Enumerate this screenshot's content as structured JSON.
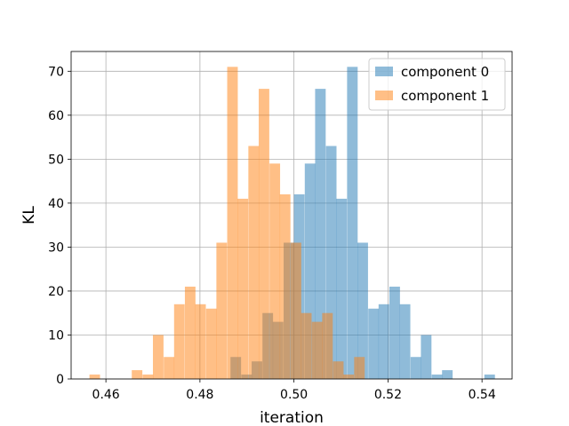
{
  "chart_data": {
    "type": "bar",
    "subtype": "overlapping-histogram",
    "xlabel": "iteration",
    "ylabel": "KL",
    "xlim": [
      0.4526,
      0.5464
    ],
    "ylim": [
      0,
      74.5
    ],
    "xticks": [
      "0.46",
      "0.48",
      "0.50",
      "0.52",
      "0.54"
    ],
    "xtick_values": [
      0.46,
      0.48,
      0.5,
      0.52,
      0.54
    ],
    "yticks": [
      "0",
      "10",
      "20",
      "30",
      "40",
      "50",
      "60",
      "70"
    ],
    "ytick_values": [
      0,
      10,
      20,
      30,
      40,
      50,
      60,
      70
    ],
    "grid": true,
    "legend_position": "top-right",
    "series": [
      {
        "name": "component 0",
        "color": "#1f77b4",
        "opacity": 0.5,
        "bin_width": 0.00225,
        "bins": [
          [
            0.4865,
            5
          ],
          [
            0.4888,
            1
          ],
          [
            0.491,
            4
          ],
          [
            0.4933,
            15
          ],
          [
            0.4955,
            13
          ],
          [
            0.4978,
            31
          ],
          [
            0.5,
            42
          ],
          [
            0.5023,
            49
          ],
          [
            0.5045,
            66
          ],
          [
            0.5068,
            53
          ],
          [
            0.509,
            41
          ],
          [
            0.5113,
            71
          ],
          [
            0.5135,
            31
          ],
          [
            0.5158,
            16
          ],
          [
            0.518,
            17
          ],
          [
            0.5203,
            21
          ],
          [
            0.5225,
            17
          ],
          [
            0.5248,
            5
          ],
          [
            0.527,
            10
          ],
          [
            0.5293,
            1
          ],
          [
            0.5315,
            2
          ],
          [
            0.5338,
            0
          ],
          [
            0.536,
            0
          ],
          [
            0.5383,
            0
          ],
          [
            0.5405,
            1
          ]
        ]
      },
      {
        "name": "component 1",
        "color": "#ff7f0e",
        "opacity": 0.5,
        "bin_width": 0.00225,
        "bins": [
          [
            0.4565,
            1
          ],
          [
            0.4588,
            0
          ],
          [
            0.461,
            0
          ],
          [
            0.4633,
            0
          ],
          [
            0.4655,
            2
          ],
          [
            0.4678,
            1
          ],
          [
            0.47,
            10
          ],
          [
            0.4723,
            5
          ],
          [
            0.4745,
            17
          ],
          [
            0.4768,
            21
          ],
          [
            0.479,
            17
          ],
          [
            0.4813,
            16
          ],
          [
            0.4835,
            31
          ],
          [
            0.4858,
            71
          ],
          [
            0.488,
            41
          ],
          [
            0.4903,
            53
          ],
          [
            0.4925,
            66
          ],
          [
            0.4948,
            49
          ],
          [
            0.497,
            42
          ],
          [
            0.4993,
            31
          ],
          [
            0.5015,
            15
          ],
          [
            0.5038,
            13
          ],
          [
            0.506,
            15
          ],
          [
            0.5083,
            4
          ],
          [
            0.5105,
            1
          ],
          [
            0.5128,
            5
          ]
        ]
      }
    ]
  }
}
